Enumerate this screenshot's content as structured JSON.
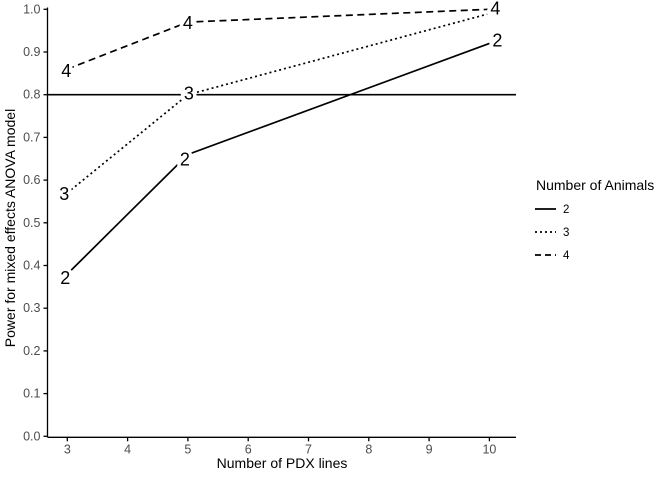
{
  "figure": {
    "background": "#ffffff"
  },
  "chart_data": {
    "type": "line",
    "title": "",
    "xlabel": "Number of PDX lines",
    "ylabel": "Power for mixed effects ANOVA model",
    "x_ticks": [
      "3",
      "4",
      "5",
      "6",
      "7",
      "8",
      "9",
      "10"
    ],
    "y_ticks": [
      "0.0",
      "0.1",
      "0.2",
      "0.3",
      "0.4",
      "0.5",
      "0.6",
      "0.7",
      "0.8",
      "0.9",
      "1.0"
    ],
    "xlim": [
      2.65,
      10.45
    ],
    "ylim": [
      0.0,
      1.0
    ],
    "grid": false,
    "reference_line": {
      "y": 0.8,
      "style": "solid"
    },
    "series": [
      {
        "name": "2",
        "linestyle": "solid",
        "x": [
          3,
          5,
          10
        ],
        "y": [
          0.38,
          0.66,
          0.92
        ]
      },
      {
        "name": "3",
        "linestyle": "dotted",
        "x": [
          3,
          5,
          10
        ],
        "y": [
          0.57,
          0.8,
          0.99
        ]
      },
      {
        "name": "4",
        "linestyle": "dashed",
        "x": [
          3,
          5,
          10
        ],
        "y": [
          0.86,
          0.97,
          1.0
        ]
      }
    ],
    "legend": {
      "title": "Number of Animals",
      "position": "right",
      "entries": [
        {
          "label": "2",
          "linestyle": "solid"
        },
        {
          "label": "3",
          "linestyle": "dotted"
        },
        {
          "label": "4",
          "linestyle": "dashed"
        }
      ]
    },
    "colors": {
      "line": "#000000",
      "axis": "#000000",
      "tick_text": "#4d4d4d",
      "background": "#ffffff"
    }
  }
}
